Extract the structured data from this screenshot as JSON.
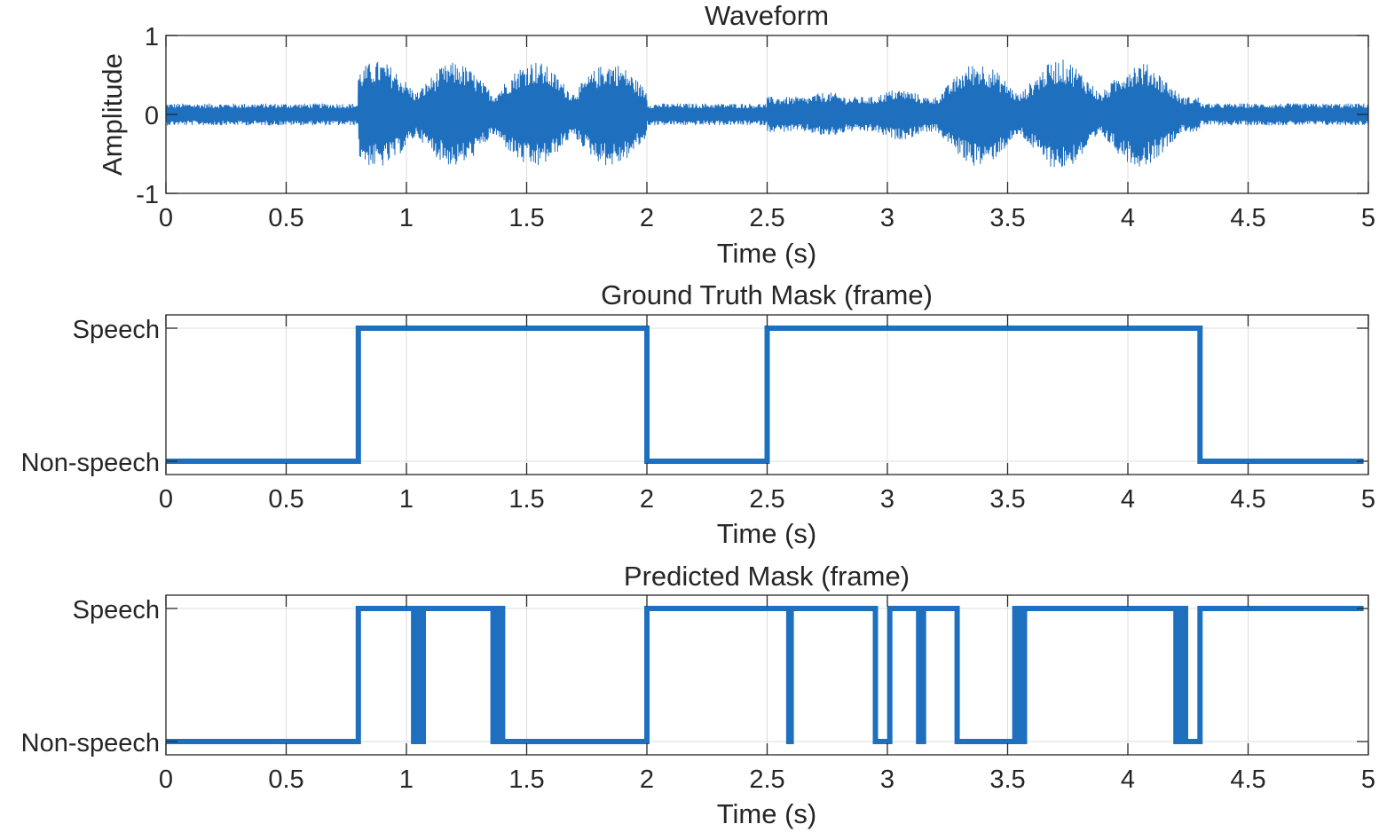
{
  "chart_data": [
    {
      "type": "line",
      "title": "Waveform",
      "xlabel": "Time (s)",
      "ylabel": "Amplitude",
      "xlim": [
        0,
        5
      ],
      "ylim": [
        -1,
        1
      ],
      "x_ticks": [
        "0",
        "0.5",
        "1",
        "1.5",
        "2",
        "2.5",
        "3",
        "3.5",
        "4",
        "4.5",
        "5"
      ],
      "y_ticks": [
        "-1",
        "0",
        "1"
      ],
      "grid": true,
      "line_color": "#1f6fbf",
      "noise_floor_amplitude": 0.14,
      "speech_segments": [
        {
          "start": 0.8,
          "end": 2.0,
          "syllable_peaks": [
            {
              "t": 0.88,
              "amp": 0.68
            },
            {
              "t": 1.2,
              "amp": 0.66
            },
            {
              "t": 1.53,
              "amp": 0.68
            },
            {
              "t": 1.85,
              "amp": 0.66
            }
          ]
        },
        {
          "start": 2.5,
          "end": 4.3,
          "syllable_peaks": [
            {
              "t": 2.75,
              "amp": 0.28
            },
            {
              "t": 3.05,
              "amp": 0.32
            },
            {
              "t": 3.38,
              "amp": 0.66
            },
            {
              "t": 3.72,
              "amp": 0.7
            },
            {
              "t": 4.05,
              "amp": 0.66
            }
          ]
        }
      ]
    },
    {
      "type": "line",
      "step": true,
      "title": "Ground Truth Mask (frame)",
      "xlabel": "Time (s)",
      "ylabel": "",
      "xlim": [
        0,
        5
      ],
      "categories": [
        "Non-speech",
        "Speech"
      ],
      "x_ticks": [
        "0",
        "0.5",
        "1",
        "1.5",
        "2",
        "2.5",
        "3",
        "3.5",
        "4",
        "4.5",
        "5"
      ],
      "grid": true,
      "line_color": "#1f6fbf",
      "x": [
        0,
        0.8,
        0.8,
        2.0,
        2.0,
        2.5,
        2.5,
        4.3,
        4.3,
        4.98
      ],
      "y": [
        0,
        0,
        1,
        1,
        0,
        0,
        1,
        1,
        0,
        0
      ]
    },
    {
      "type": "line",
      "step": true,
      "title": "Predicted Mask (frame)",
      "xlabel": "Time (s)",
      "ylabel": "",
      "xlim": [
        0,
        5
      ],
      "categories": [
        "Non-speech",
        "Speech"
      ],
      "x_ticks": [
        "0",
        "0.5",
        "1",
        "1.5",
        "2",
        "2.5",
        "3",
        "3.5",
        "4",
        "4.5",
        "5"
      ],
      "grid": true,
      "line_color": "#1f6fbf",
      "x": [
        0,
        0.8,
        0.8,
        1.03,
        1.03,
        1.04,
        1.04,
        1.06,
        1.06,
        1.07,
        1.07,
        1.36,
        1.36,
        1.38,
        1.38,
        1.4,
        1.4,
        2.0,
        2.0,
        2.59,
        2.59,
        2.6,
        2.6,
        2.95,
        2.95,
        3.01,
        3.01,
        3.13,
        3.13,
        3.15,
        3.15,
        3.29,
        3.29,
        3.53,
        3.53,
        3.55,
        3.55,
        3.57,
        3.57,
        4.2,
        4.2,
        4.22,
        4.22,
        4.24,
        4.24,
        4.3,
        4.3,
        4.98
      ],
      "y": [
        0,
        0,
        1,
        1,
        0,
        0,
        1,
        1,
        0,
        0,
        1,
        1,
        0,
        0,
        1,
        1,
        0,
        0,
        1,
        1,
        0,
        0,
        1,
        1,
        0,
        0,
        1,
        1,
        0,
        0,
        1,
        1,
        0,
        0,
        1,
        1,
        0,
        0,
        1,
        1,
        0,
        0,
        1,
        1,
        0,
        0,
        1,
        1
      ]
    }
  ]
}
